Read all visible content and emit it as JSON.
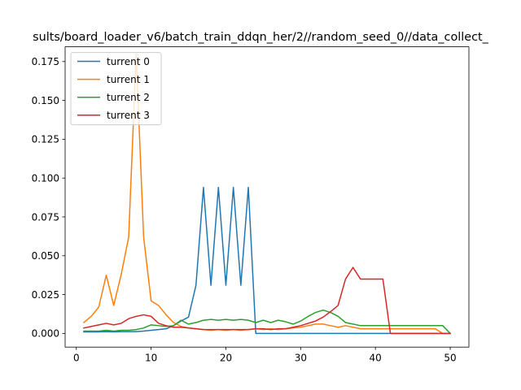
{
  "chart_data": {
    "type": "line",
    "title": "sults/board_loader_v6/batch_train_ddqn_her/2//random_seed_0//data_collect_",
    "xlabel": "",
    "ylabel": "",
    "xlim": [
      -1.5,
      52.5
    ],
    "ylim": [
      -0.0088,
      0.1845
    ],
    "xticks": [
      0,
      10,
      20,
      30,
      40,
      50
    ],
    "yticks": [
      0.0,
      0.025,
      0.05,
      0.075,
      0.1,
      0.125,
      0.15,
      0.175
    ],
    "xtick_labels": [
      "0",
      "10",
      "20",
      "30",
      "40",
      "50"
    ],
    "ytick_labels": [
      "0.000",
      "0.025",
      "0.050",
      "0.075",
      "0.100",
      "0.125",
      "0.150",
      "0.175"
    ],
    "grid": false,
    "legend_position": "upper-left",
    "x": [
      1,
      2,
      3,
      4,
      5,
      6,
      7,
      8,
      9,
      10,
      11,
      12,
      13,
      14,
      15,
      16,
      17,
      18,
      19,
      20,
      21,
      22,
      23,
      24,
      25,
      26,
      27,
      28,
      29,
      30,
      31,
      32,
      33,
      34,
      35,
      36,
      37,
      38,
      39,
      40,
      41,
      42,
      43,
      44,
      45,
      46,
      47,
      48,
      49,
      50
    ],
    "series": [
      {
        "name": "turrent 0",
        "color": "#1f77b4",
        "values": [
          0.001,
          0.001,
          0.001,
          0.0012,
          0.001,
          0.0012,
          0.0012,
          0.0012,
          0.0015,
          0.002,
          0.0025,
          0.003,
          0.005,
          0.008,
          0.0105,
          0.031,
          0.094,
          0.031,
          0.094,
          0.031,
          0.094,
          0.031,
          0.094,
          0.0,
          0.0,
          0.0,
          0.0,
          0.0,
          0.0,
          0.0,
          0.0,
          0.0,
          0.0,
          0.0,
          0.0,
          0.0,
          0.0,
          0.0,
          0.0,
          0.0,
          0.0,
          0.0,
          0.0,
          0.0,
          0.0,
          0.0,
          0.0,
          0.0,
          0.0,
          0.0
        ]
      },
      {
        "name": "turrent 1",
        "color": "#ff7f0e",
        "values": [
          0.007,
          0.011,
          0.017,
          0.0375,
          0.018,
          0.038,
          0.062,
          0.18,
          0.062,
          0.021,
          0.018,
          0.012,
          0.007,
          0.0045,
          0.0035,
          0.003,
          0.0025,
          0.002,
          0.0025,
          0.002,
          0.0025,
          0.002,
          0.0025,
          0.003,
          0.0025,
          0.003,
          0.0025,
          0.003,
          0.0035,
          0.004,
          0.005,
          0.006,
          0.006,
          0.005,
          0.004,
          0.005,
          0.004,
          0.003,
          0.003,
          0.003,
          0.003,
          0.003,
          0.003,
          0.003,
          0.003,
          0.003,
          0.003,
          0.003,
          0.0,
          0.0
        ]
      },
      {
        "name": "turrent 2",
        "color": "#2ca02c",
        "values": [
          0.0015,
          0.0015,
          0.0015,
          0.002,
          0.0015,
          0.002,
          0.002,
          0.0025,
          0.0035,
          0.0055,
          0.005,
          0.0045,
          0.005,
          0.0085,
          0.006,
          0.007,
          0.0085,
          0.009,
          0.0085,
          0.009,
          0.0085,
          0.009,
          0.0085,
          0.007,
          0.0085,
          0.007,
          0.0085,
          0.0075,
          0.006,
          0.008,
          0.011,
          0.0135,
          0.015,
          0.0135,
          0.011,
          0.007,
          0.006,
          0.005,
          0.005,
          0.005,
          0.005,
          0.005,
          0.005,
          0.005,
          0.005,
          0.005,
          0.005,
          0.005,
          0.005,
          0.0
        ]
      },
      {
        "name": "turrent 3",
        "color": "#d62728",
        "values": [
          0.0035,
          0.0045,
          0.0055,
          0.0065,
          0.0055,
          0.0065,
          0.0095,
          0.011,
          0.012,
          0.011,
          0.0065,
          0.005,
          0.004,
          0.004,
          0.0035,
          0.003,
          0.0025,
          0.0025,
          0.0025,
          0.0025,
          0.0025,
          0.0025,
          0.0025,
          0.003,
          0.003,
          0.0025,
          0.003,
          0.003,
          0.004,
          0.005,
          0.0065,
          0.008,
          0.0105,
          0.014,
          0.018,
          0.035,
          0.0425,
          0.035,
          0.035,
          0.035,
          0.035,
          0.0,
          0.0,
          0.0,
          0.0,
          0.0,
          0.0,
          0.0,
          0.0,
          0.0
        ]
      }
    ]
  }
}
